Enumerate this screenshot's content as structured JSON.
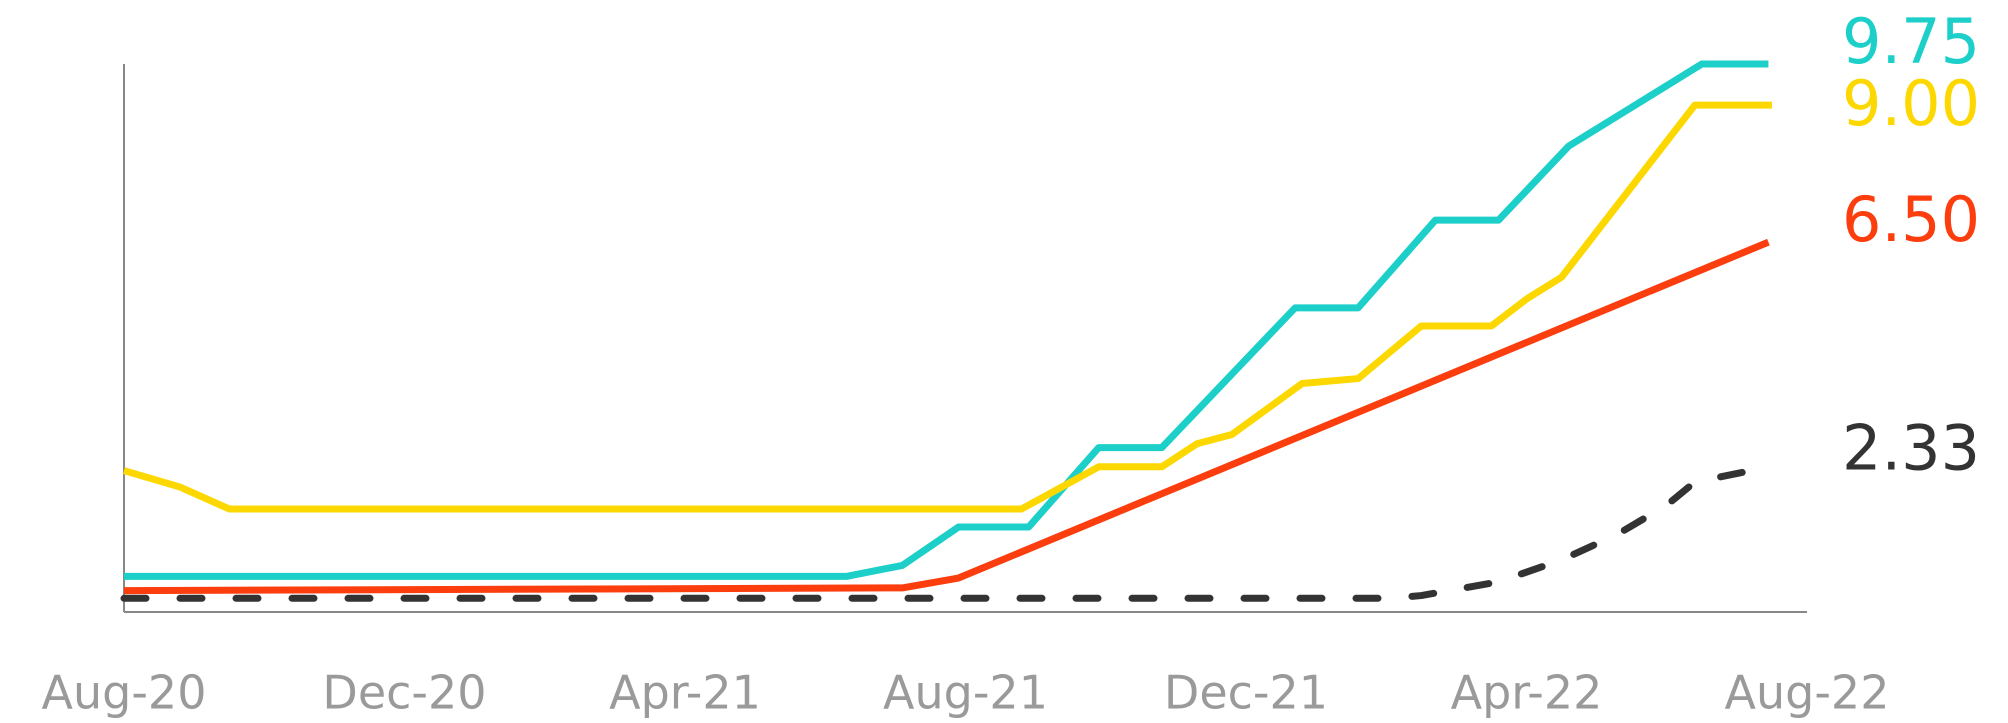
{
  "chart_data": {
    "type": "line",
    "xlim": [
      0,
      24
    ],
    "xticks": [
      {
        "value": 0,
        "label": "Aug-20"
      },
      {
        "value": 4,
        "label": "Dec-20"
      },
      {
        "value": 8,
        "label": "Apr-21"
      },
      {
        "value": 12,
        "label": "Aug-21"
      },
      {
        "value": 16,
        "label": "Dec-21"
      },
      {
        "value": 20,
        "label": "Apr-22"
      },
      {
        "value": 24,
        "label": "Aug-22"
      }
    ],
    "ylim": [
      -0.25,
      9.75
    ],
    "series": [
      {
        "color": "#1ccfc9",
        "dashed": false,
        "x": [
          0,
          10.3,
          11.1,
          11.9,
          12.9,
          13.9,
          14.8,
          16.7,
          17.6,
          18.7,
          19.6,
          20.6,
          22.5,
          23.45
        ],
        "values": [
          0.4,
          0.4,
          0.6,
          1.3,
          1.3,
          2.75,
          2.75,
          5.3,
          5.3,
          6.9,
          6.9,
          8.25,
          9.75,
          9.75
        ],
        "value_labels": [
          null,
          null,
          null,
          null,
          null,
          null,
          null,
          null,
          null,
          null,
          null,
          null,
          null,
          "9.75"
        ]
      },
      {
        "color": "#fcd800",
        "dashed": false,
        "x": [
          0,
          0.8,
          1.5,
          12.8,
          13.9,
          14.8,
          15.3,
          15.8,
          16.8,
          17.6,
          18.5,
          19.5,
          20.0,
          20.5,
          22.4,
          23.5
        ],
        "values": [
          2.33,
          2.03,
          1.63,
          1.63,
          2.4,
          2.4,
          2.82,
          2.99,
          3.92,
          4.01,
          4.97,
          4.97,
          5.46,
          5.86,
          9.0,
          9.0
        ],
        "value_labels": [
          null,
          null,
          null,
          null,
          null,
          null,
          null,
          null,
          null,
          null,
          null,
          null,
          null,
          null,
          null,
          "9.00"
        ]
      },
      {
        "color": "#fc3d0e",
        "dashed": false,
        "x": [
          0,
          11.1,
          11.9,
          23.45
        ],
        "values": [
          0.14,
          0.19,
          0.37,
          6.5
        ],
        "value_labels": [
          null,
          null,
          null,
          "6.50"
        ]
      },
      {
        "color": "#333333",
        "dashed": true,
        "x": [
          0,
          18.05,
          18.5,
          19.6,
          20.5,
          21.3,
          22.0,
          22.4,
          23.2
        ],
        "values": [
          0,
          0,
          0.05,
          0.3,
          0.7,
          1.17,
          1.7,
          2.12,
          2.33
        ],
        "value_labels": [
          null,
          null,
          null,
          null,
          null,
          null,
          null,
          null,
          "2.33"
        ]
      }
    ]
  }
}
